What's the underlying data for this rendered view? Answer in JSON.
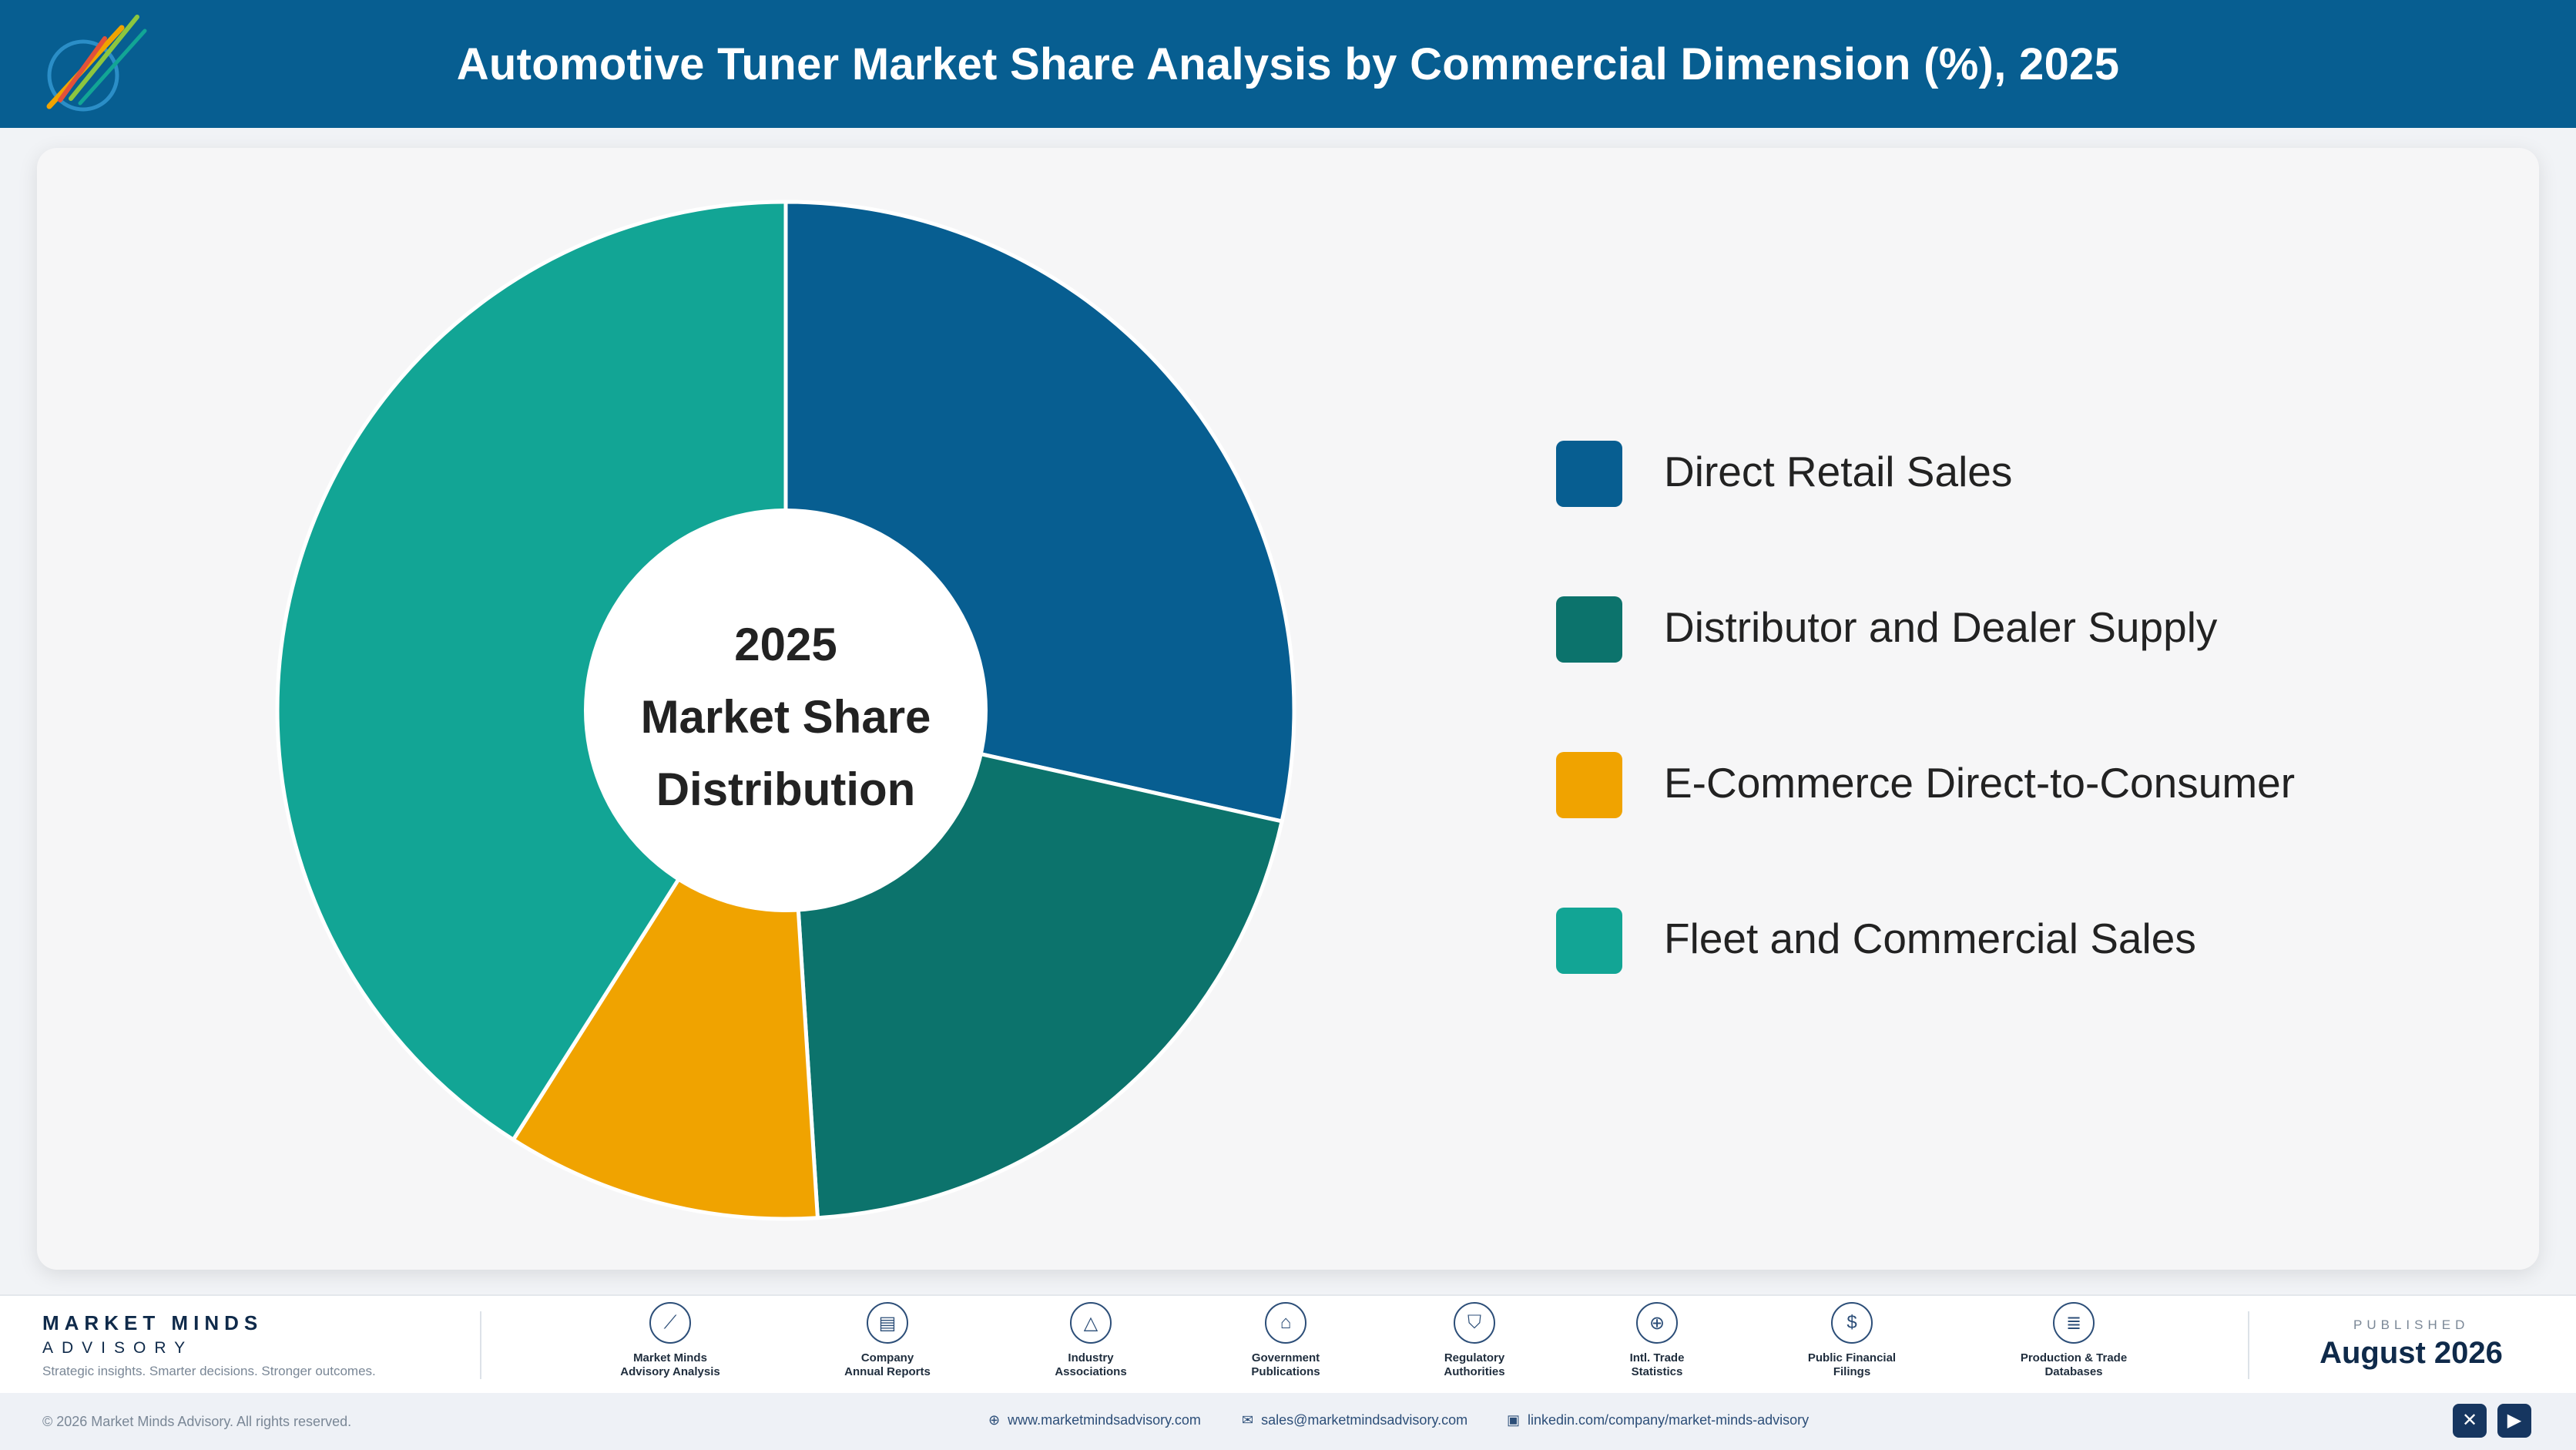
{
  "header": {
    "title": "Automotive Tuner Market Share Analysis by Commercial Dimension (%), 2025"
  },
  "logo": {
    "text": "Market Minds Advisory"
  },
  "chart_data": {
    "type": "pie",
    "donut": true,
    "title": "Automotive Tuner Market Share Analysis by Commercial Dimension (%), 2025",
    "center_label": [
      "2025",
      "Market Share",
      "Distribution"
    ],
    "legend_position": "right",
    "categories": [
      "Direct Retail Sales",
      "Distributor and Dealer Supply",
      "E-Commerce Direct-to-Consumer",
      "Fleet and Commercial Sales"
    ],
    "values": [
      28.5,
      20.5,
      10.0,
      41.0
    ],
    "colors": [
      "#075e91",
      "#0c736c",
      "#f0a300",
      "#12a595"
    ]
  },
  "footer": {
    "brand_name": "MARKET MINDS",
    "brand_sub": "ADVISORY",
    "brand_tag": "Strategic insights. Smarter decisions. Stronger outcomes.",
    "sources": [
      {
        "icon": "trend-chart-icon",
        "glyph": "⟋",
        "label": "Market Minds\nAdvisory Analysis"
      },
      {
        "icon": "document-icon",
        "glyph": "▤",
        "label": "Company\nAnnual Reports"
      },
      {
        "icon": "network-icon",
        "glyph": "△",
        "label": "Industry\nAssociations"
      },
      {
        "icon": "government-building-icon",
        "glyph": "⌂",
        "label": "Government\nPublications"
      },
      {
        "icon": "shield-icon",
        "glyph": "⛉",
        "label": "Regulatory\nAuthorities"
      },
      {
        "icon": "globe-icon",
        "glyph": "⊕",
        "label": "Intl. Trade\nStatistics"
      },
      {
        "icon": "dollar-icon",
        "glyph": "$",
        "label": "Public Financial\nFilings"
      },
      {
        "icon": "database-icon",
        "glyph": "≣",
        "label": "Production & Trade\nDatabases"
      }
    ],
    "published_label": "PUBLISHED",
    "published_date": "August 2026"
  },
  "bottom_bar": {
    "copyright": "© 2026 Market Minds Advisory. All rights reserved.",
    "website": "www.marketmindsadvisory.com",
    "email": "sales@marketmindsadvisory.com",
    "linkedin": "linkedin.com/company/market-minds-advisory"
  }
}
